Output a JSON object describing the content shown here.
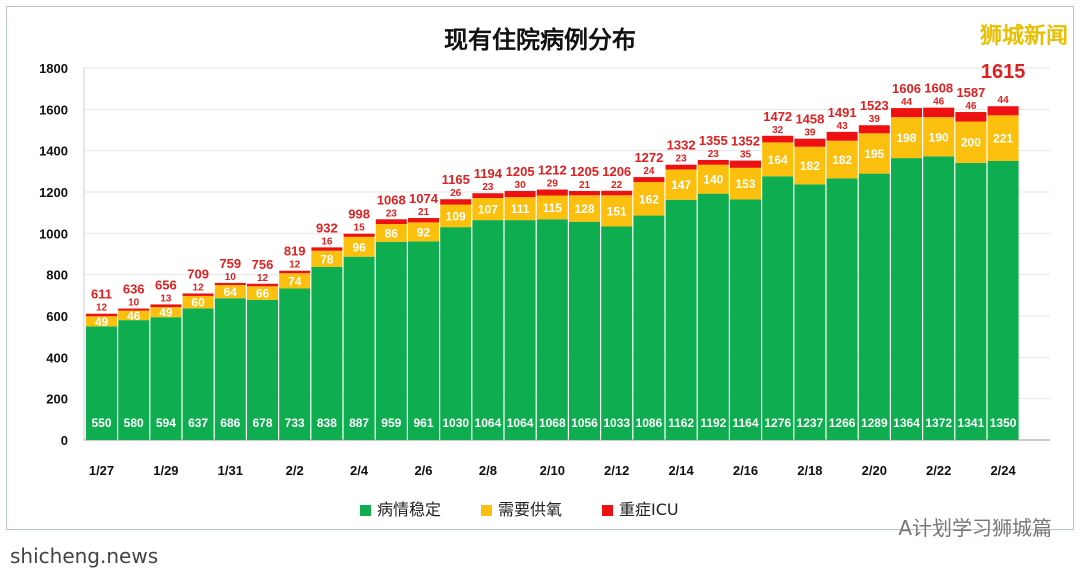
{
  "chart_data": {
    "type": "bar",
    "stacked": true,
    "title": "现有住院病例分布",
    "ylim": [
      0,
      1800
    ],
    "yticks": [
      0,
      200,
      400,
      600,
      800,
      1000,
      1200,
      1400,
      1600,
      1800
    ],
    "grid": true,
    "legend_position": "bottom",
    "categories": [
      "1/27",
      "1/28",
      "1/29",
      "1/30",
      "1/31",
      "2/1",
      "2/2",
      "2/3",
      "2/4",
      "2/5",
      "2/6",
      "2/7",
      "2/8",
      "2/9",
      "2/10",
      "2/11",
      "2/12",
      "2/13",
      "2/14",
      "2/15",
      "2/16",
      "2/17",
      "2/18",
      "2/19",
      "2/20",
      "2/21",
      "2/22",
      "2/23",
      "2/24"
    ],
    "xtick_labels": [
      "1/27",
      "",
      "1/29",
      "",
      "1/31",
      "",
      "2/2",
      "",
      "2/4",
      "",
      "2/6",
      "",
      "2/8",
      "",
      "2/10",
      "",
      "2/12",
      "",
      "2/14",
      "",
      "2/16",
      "",
      "2/18",
      "",
      "2/20",
      "",
      "2/22",
      "",
      "2/24"
    ],
    "series": [
      {
        "name": "病情稳定",
        "color": "#0ead4f",
        "values": [
          550,
          580,
          594,
          637,
          686,
          678,
          733,
          838,
          887,
          959,
          961,
          1030,
          1064,
          1064,
          1068,
          1056,
          1033,
          1086,
          1162,
          1192,
          1164,
          1276,
          1237,
          1266,
          1289,
          1364,
          1372,
          1341,
          1350
        ]
      },
      {
        "name": "需要供氧",
        "color": "#fbbf0e",
        "values": [
          49,
          46,
          49,
          60,
          64,
          66,
          74,
          78,
          96,
          86,
          92,
          109,
          107,
          111,
          115,
          128,
          151,
          162,
          147,
          140,
          153,
          164,
          182,
          182,
          195,
          198,
          190,
          200,
          221
        ]
      },
      {
        "name": "重症ICU",
        "color": "#ee1111",
        "values": [
          12,
          10,
          13,
          12,
          10,
          12,
          12,
          16,
          15,
          23,
          21,
          26,
          23,
          30,
          29,
          21,
          22,
          24,
          23,
          23,
          35,
          32,
          39,
          43,
          39,
          44,
          46,
          46,
          44
        ]
      }
    ],
    "totals": [
      611,
      636,
      656,
      709,
      759,
      756,
      819,
      932,
      998,
      1068,
      1074,
      1165,
      1194,
      1205,
      1212,
      1205,
      1206,
      1272,
      1332,
      1355,
      1352,
      1472,
      1458,
      1491,
      1523,
      1606,
      1608,
      1587,
      1615
    ]
  },
  "watermarks": {
    "top_right": "狮城新闻",
    "bottom_right": "A计划学习狮城篇",
    "bottom_left": "shicheng.news"
  }
}
